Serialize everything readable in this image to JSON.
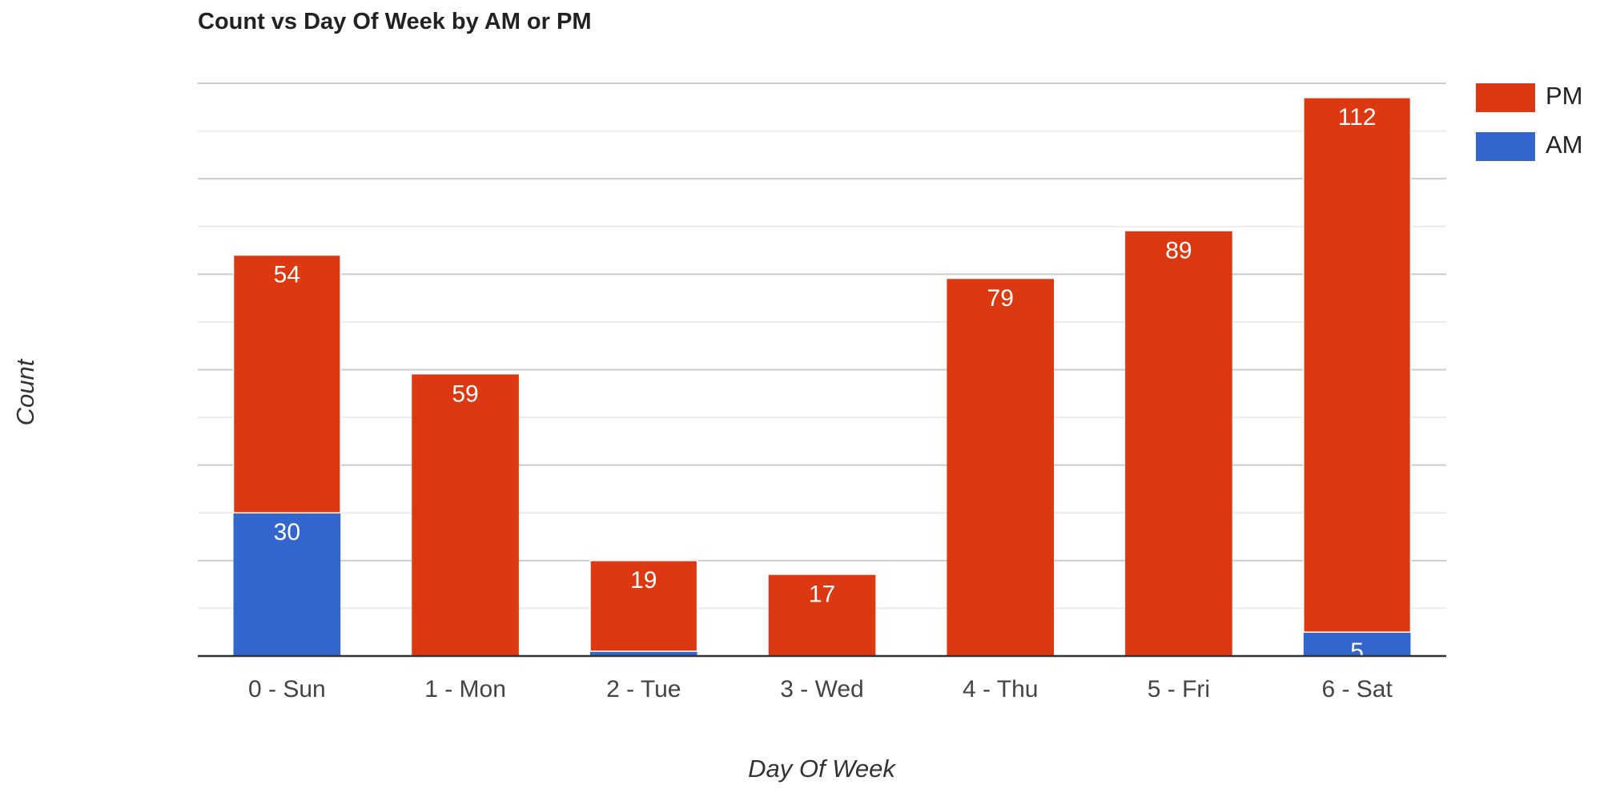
{
  "chart_data": {
    "type": "stacked_bar",
    "title": "Count vs Day Of Week by AM or PM",
    "x_label": "Day Of Week",
    "y_label": "Count",
    "categories": [
      "0 - Sun",
      "1 - Mon",
      "2 - Tue",
      "3 - Wed",
      "4 - Thu",
      "5 - Fri",
      "6 - Sat"
    ],
    "series": [
      {
        "name": "AM",
        "color": "#3366cc",
        "values": [
          30,
          0,
          1,
          0,
          0,
          0,
          5
        ]
      },
      {
        "name": "PM",
        "color": "#dc3912",
        "values": [
          54,
          59,
          19,
          17,
          79,
          89,
          112
        ]
      }
    ],
    "ylim": [
      0,
      120
    ],
    "yticks": [
      0,
      10,
      20,
      30,
      40,
      50,
      60,
      70,
      80,
      90,
      100,
      110,
      120
    ],
    "grid": true,
    "legend": "right"
  }
}
